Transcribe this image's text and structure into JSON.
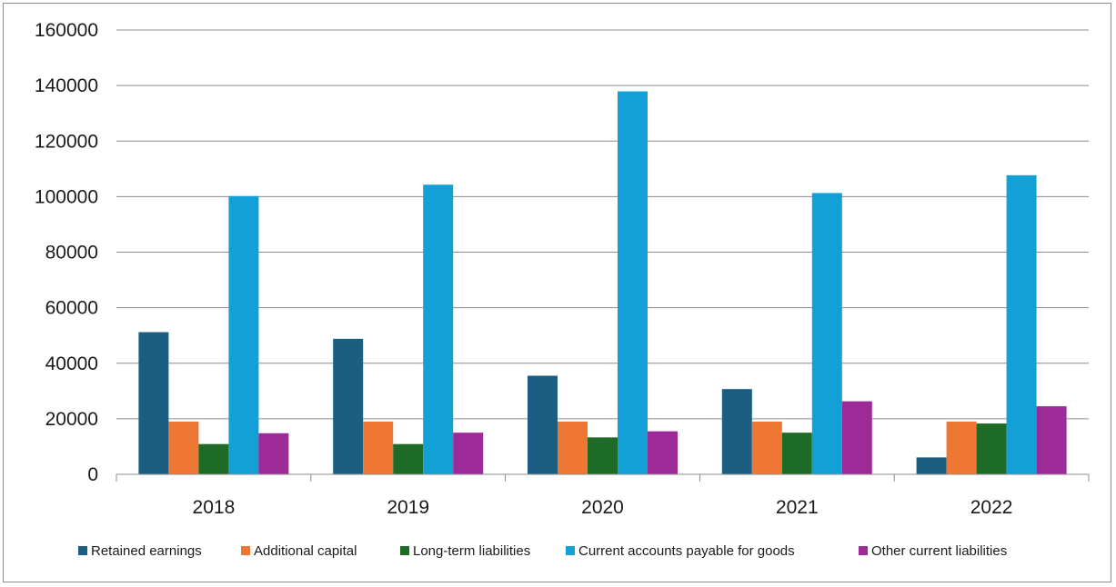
{
  "chart_data": {
    "type": "bar",
    "title": "",
    "xlabel": "",
    "ylabel": "",
    "categories": [
      "2018",
      "2019",
      "2020",
      "2021",
      "2022"
    ],
    "ylim": [
      0,
      160000
    ],
    "yticks": [
      "0",
      "20000",
      "40000",
      "60000",
      "80000",
      "100000",
      "120000",
      "140000",
      "160000"
    ],
    "grid": true,
    "legend_position": "bottom",
    "series": [
      {
        "name": "Retained earnings",
        "color": "#1b5e82",
        "values": [
          51200,
          48800,
          35500,
          30700,
          6100
        ]
      },
      {
        "name": "Additional capital",
        "color": "#ee7733",
        "values": [
          19000,
          19000,
          19000,
          19000,
          19000
        ]
      },
      {
        "name": "Long-term liabilities",
        "color": "#1e6b27",
        "values": [
          10900,
          10900,
          13300,
          15000,
          18300
        ]
      },
      {
        "name": "Current accounts payable for goods",
        "color": "#12a0d6",
        "values": [
          100200,
          104300,
          137900,
          101300,
          107700
        ]
      },
      {
        "name": "Other current liabilities",
        "color": "#9c2a97",
        "values": [
          14800,
          15000,
          15500,
          26300,
          24500
        ]
      }
    ]
  }
}
